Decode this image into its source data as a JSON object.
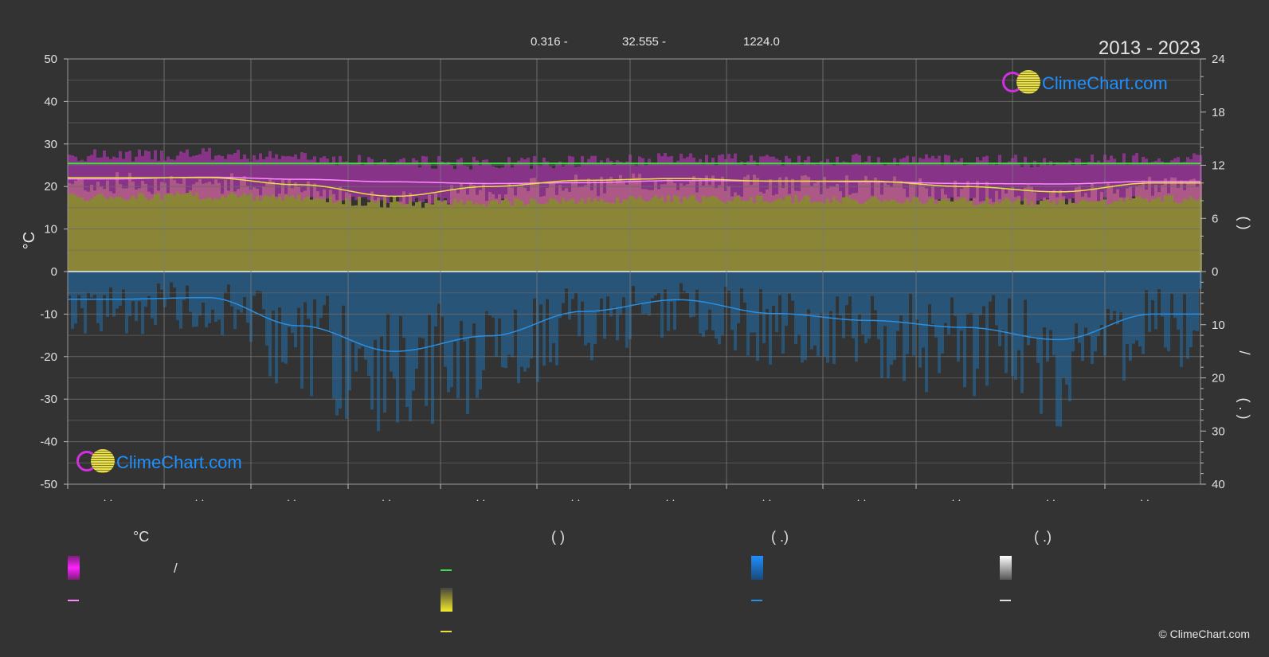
{
  "header": {
    "period": "2013 - 2023",
    "stat_1": "0.316 -",
    "stat_2": "32.555 -",
    "stat_3": "1224.0"
  },
  "axes": {
    "left_label": "°C",
    "left_ticks": [
      "50",
      "40",
      "30",
      "20",
      "10",
      "0",
      "-10",
      "-20",
      "-30",
      "-40",
      "-50"
    ],
    "right_ticks_top": [
      "24",
      "18",
      "12",
      "6",
      "0"
    ],
    "right_ticks_bottom": [
      "10",
      "20",
      "30",
      "40"
    ],
    "right_label_upper": "(   )",
    "right_label_lower": "/",
    "right_label_lower2": "(   .   )",
    "x_tick_marks": [
      "· ·",
      "· ·",
      "· ·",
      "· ·",
      "· ·",
      "· ·",
      "· ·",
      "· ·",
      "· ·",
      "· ·",
      "· ·",
      "· ·"
    ]
  },
  "legend": {
    "col1_title": "°C",
    "col1_item1_text": "/",
    "col2_title": "(          )",
    "col3_title": "(   .)",
    "col4_title": "(   .)"
  },
  "watermark": {
    "text": "ClimeChart.com"
  },
  "copyright": "© ClimeChart.com",
  "colors": {
    "background": "#333333",
    "temp_band": "#cc33cc",
    "temp_mean": "#ff88ff",
    "daylight_line": "#44dd44",
    "sunshine_band": "#a9a33a",
    "sunshine_line": "#e8e040",
    "rain_band": "#1f6fb0",
    "rain_line": "#2a8fe0",
    "snow": "#e0e0e0"
  },
  "chart_data": {
    "type": "area",
    "title": "2013 - 2023",
    "ylabel": "°C",
    "ylim": [
      -50,
      50
    ],
    "y2_upper_ylim": [
      0,
      24
    ],
    "y2_lower_ylim": [
      0,
      40
    ],
    "x_months": 12,
    "grid": true,
    "series": [
      {
        "key": "daylight_hours",
        "axis": "right_upper",
        "values": [
          12.2,
          12.2,
          12.2,
          12.2,
          12.2,
          12.2,
          12.2,
          12.2,
          12.2,
          12.2,
          12.2,
          12.2
        ]
      },
      {
        "key": "sunshine_hours",
        "axis": "right_upper",
        "values": [
          10.6,
          10.6,
          9.8,
          8.5,
          9.6,
          10.3,
          10.5,
          10.2,
          10.2,
          9.6,
          9.0,
          10.0
        ]
      },
      {
        "key": "mean_temperature",
        "axis": "left",
        "values": [
          21.8,
          22.2,
          21.7,
          21.1,
          20.7,
          20.9,
          21.4,
          21.3,
          21.1,
          20.7,
          20.6,
          21.2
        ]
      },
      {
        "key": "max_temperature_band",
        "axis": "left",
        "values": [
          27.0,
          27.3,
          26.5,
          25.5,
          25.2,
          25.6,
          26.2,
          26.0,
          26.1,
          25.9,
          25.7,
          26.4
        ]
      },
      {
        "key": "min_temperature_band",
        "axis": "left",
        "values": [
          18.5,
          18.8,
          18.2,
          17.6,
          17.3,
          17.6,
          18.1,
          18.0,
          17.9,
          17.5,
          17.4,
          18.0
        ]
      },
      {
        "key": "precipitation_mm_per_day",
        "axis": "right_lower",
        "values": [
          5.2,
          4.9,
          10.2,
          15.0,
          12.1,
          7.5,
          5.3,
          7.9,
          9.2,
          10.5,
          12.8,
          8.0
        ]
      }
    ]
  }
}
